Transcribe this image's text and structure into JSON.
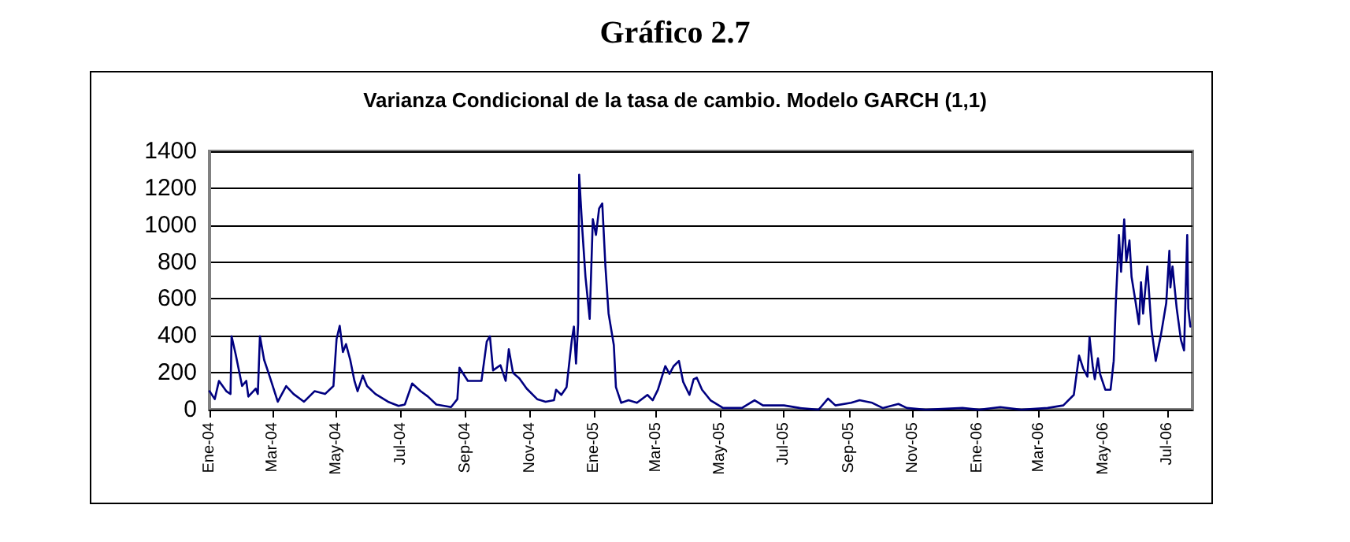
{
  "chart_data": {
    "type": "line",
    "title": "Gráfico 2.7",
    "subtitle": "Varianza Condicional de la tasa de cambio. Modelo GARCH (1,1)",
    "x": [
      "2004-01-01",
      "2004-01-06",
      "2004-01-10",
      "2004-01-17",
      "2004-01-21",
      "2004-01-22",
      "2004-01-26",
      "2004-02-01",
      "2004-02-05",
      "2004-02-07",
      "2004-02-14",
      "2004-02-16",
      "2004-02-18",
      "2004-02-22",
      "2004-02-27",
      "2004-03-06",
      "2004-03-14",
      "2004-03-21",
      "2004-03-31",
      "2004-04-10",
      "2004-04-20",
      "2004-04-28",
      "2004-05-01",
      "2004-05-04",
      "2004-05-07",
      "2004-05-10",
      "2004-05-14",
      "2004-05-18",
      "2004-05-21",
      "2004-05-26",
      "2004-05-30",
      "2004-06-07",
      "2004-06-19",
      "2004-06-29",
      "2004-07-05",
      "2004-07-12",
      "2004-07-20",
      "2004-07-27",
      "2004-08-04",
      "2004-08-18",
      "2004-08-24",
      "2004-08-26",
      "2004-09-03",
      "2004-09-16",
      "2004-09-21",
      "2004-09-24",
      "2004-09-27",
      "2004-10-04",
      "2004-10-09",
      "2004-10-12",
      "2004-10-16",
      "2004-10-22",
      "2004-10-29",
      "2004-11-08",
      "2004-11-16",
      "2004-11-24",
      "2004-11-26",
      "2004-12-01",
      "2004-12-06",
      "2004-12-11",
      "2004-12-13",
      "2004-12-15",
      "2004-12-17",
      "2004-12-18",
      "2004-12-21",
      "2004-12-24",
      "2004-12-28",
      "2004-12-31",
      "2005-01-03",
      "2005-01-06",
      "2005-01-09",
      "2005-01-12",
      "2005-01-15",
      "2005-01-20",
      "2005-01-22",
      "2005-01-27",
      "2005-02-03",
      "2005-02-11",
      "2005-02-21",
      "2005-02-26",
      "2005-03-03",
      "2005-03-10",
      "2005-03-14",
      "2005-03-18",
      "2005-03-23",
      "2005-03-27",
      "2005-04-02",
      "2005-04-06",
      "2005-04-09",
      "2005-04-14",
      "2005-04-22",
      "2005-05-04",
      "2005-05-22",
      "2005-06-03",
      "2005-06-11",
      "2005-07-01",
      "2005-07-16",
      "2005-08-03",
      "2005-08-12",
      "2005-08-19",
      "2005-09-03",
      "2005-09-11",
      "2005-09-23",
      "2005-10-03",
      "2005-10-18",
      "2005-10-26",
      "2005-11-13",
      "2005-12-18",
      "2006-01-03",
      "2006-01-23",
      "2006-02-12",
      "2006-03-09",
      "2006-03-24",
      "2006-04-03",
      "2006-04-08",
      "2006-04-12",
      "2006-04-16",
      "2006-04-18",
      "2006-04-21",
      "2006-04-23",
      "2006-04-26",
      "2006-04-28",
      "2006-05-03",
      "2006-05-08",
      "2006-05-11",
      "2006-05-13",
      "2006-05-16",
      "2006-05-18",
      "2006-05-21",
      "2006-05-23",
      "2006-05-26",
      "2006-05-28",
      "2006-06-01",
      "2006-06-04",
      "2006-06-06",
      "2006-06-08",
      "2006-06-12",
      "2006-06-16",
      "2006-06-20",
      "2006-06-25",
      "2006-06-30",
      "2006-07-03",
      "2006-07-04",
      "2006-07-06",
      "2006-07-10",
      "2006-07-14",
      "2006-07-17",
      "2006-07-20",
      "2006-07-21",
      "2006-07-23"
    ],
    "values": [
      100,
      57,
      156,
      100,
      85,
      398,
      298,
      128,
      156,
      71,
      114,
      85,
      398,
      270,
      185,
      43,
      128,
      85,
      43,
      100,
      85,
      128,
      383,
      454,
      312,
      355,
      270,
      156,
      100,
      185,
      128,
      85,
      43,
      20,
      28,
      142,
      100,
      71,
      28,
      14,
      57,
      227,
      156,
      156,
      369,
      398,
      213,
      241,
      156,
      327,
      199,
      170,
      114,
      57,
      43,
      51,
      108,
      80,
      122,
      378,
      450,
      250,
      464,
      1273,
      975,
      720,
      492,
      1032,
      947,
      1090,
      1117,
      776,
      521,
      350,
      122,
      37,
      51,
      37,
      80,
      51,
      108,
      236,
      194,
      236,
      264,
      151,
      80,
      165,
      173,
      108,
      51,
      9,
      9,
      51,
      23,
      23,
      9,
      0,
      60,
      23,
      37,
      51,
      37,
      9,
      31,
      9,
      0,
      9,
      0,
      14,
      0,
      9,
      23,
      80,
      293,
      222,
      179,
      392,
      236,
      165,
      278,
      193,
      108,
      108,
      264,
      577,
      946,
      747,
      1031,
      804,
      917,
      719,
      577,
      463,
      690,
      520,
      776,
      435,
      264,
      406,
      577,
      861,
      662,
      776,
      548,
      378,
      321,
      946,
      548,
      450
    ],
    "color": "#000080",
    "xlim": [
      "2004-01-01",
      "2006-07-25"
    ],
    "xticks": [
      {
        "value": "2004-01-01",
        "label": "Ene-04"
      },
      {
        "value": "2004-03-01",
        "label": "Mar-04"
      },
      {
        "value": "2004-05-01",
        "label": "May-04"
      },
      {
        "value": "2004-07-01",
        "label": "Jul-04"
      },
      {
        "value": "2004-09-01",
        "label": "Sep-04"
      },
      {
        "value": "2004-11-01",
        "label": "Nov-04"
      },
      {
        "value": "2005-01-01",
        "label": "Ene-05"
      },
      {
        "value": "2005-03-01",
        "label": "Mar-05"
      },
      {
        "value": "2005-05-01",
        "label": "May-05"
      },
      {
        "value": "2005-07-01",
        "label": "Jul-05"
      },
      {
        "value": "2005-09-01",
        "label": "Sep-05"
      },
      {
        "value": "2005-11-01",
        "label": "Nov-05"
      },
      {
        "value": "2006-01-01",
        "label": "Ene-06"
      },
      {
        "value": "2006-03-01",
        "label": "Mar-06"
      },
      {
        "value": "2006-05-01",
        "label": "May-06"
      },
      {
        "value": "2006-07-01",
        "label": "Jul-06"
      }
    ],
    "ylim": [
      0,
      1400
    ],
    "yticks": [
      0,
      200,
      400,
      600,
      800,
      1000,
      1200,
      1400
    ],
    "grid": "y",
    "marker": "none",
    "line_style": "solid"
  }
}
